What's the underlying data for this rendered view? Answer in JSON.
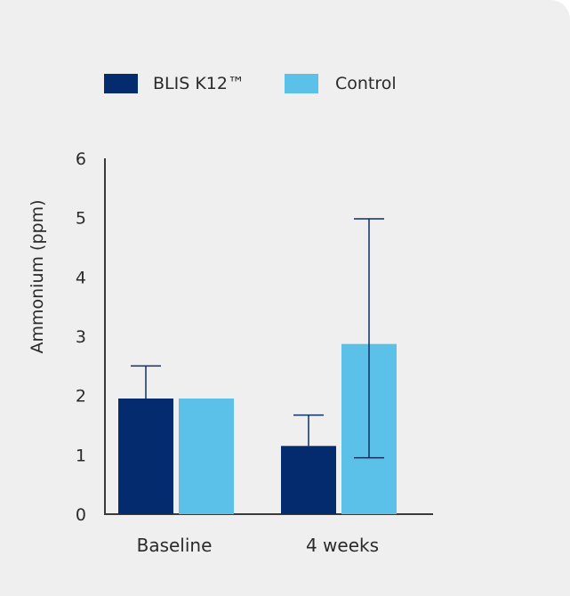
{
  "chart_data": {
    "type": "bar",
    "title": "",
    "xlabel": "",
    "ylabel": "Ammonium (ppm)",
    "ylim": [
      0,
      6
    ],
    "yticks": [
      0,
      1,
      2,
      3,
      4,
      5,
      6
    ],
    "categories": [
      "Baseline",
      "4 weeks"
    ],
    "legend_position": "top-left",
    "series": [
      {
        "name": "BLIS K12™",
        "color": "#032b6e",
        "values": [
          1.95,
          1.15
        ],
        "error_upper": [
          2.5,
          1.67
        ],
        "error_lower": [
          1.95,
          1.15
        ],
        "error_color": "#0d2f66"
      },
      {
        "name": "Control",
        "color": "#5cc1e8",
        "values": [
          1.95,
          2.87
        ],
        "error_upper": [
          1.95,
          4.98
        ],
        "error_lower": [
          1.95,
          0.95
        ],
        "error_color": "#0d2f66"
      }
    ]
  }
}
